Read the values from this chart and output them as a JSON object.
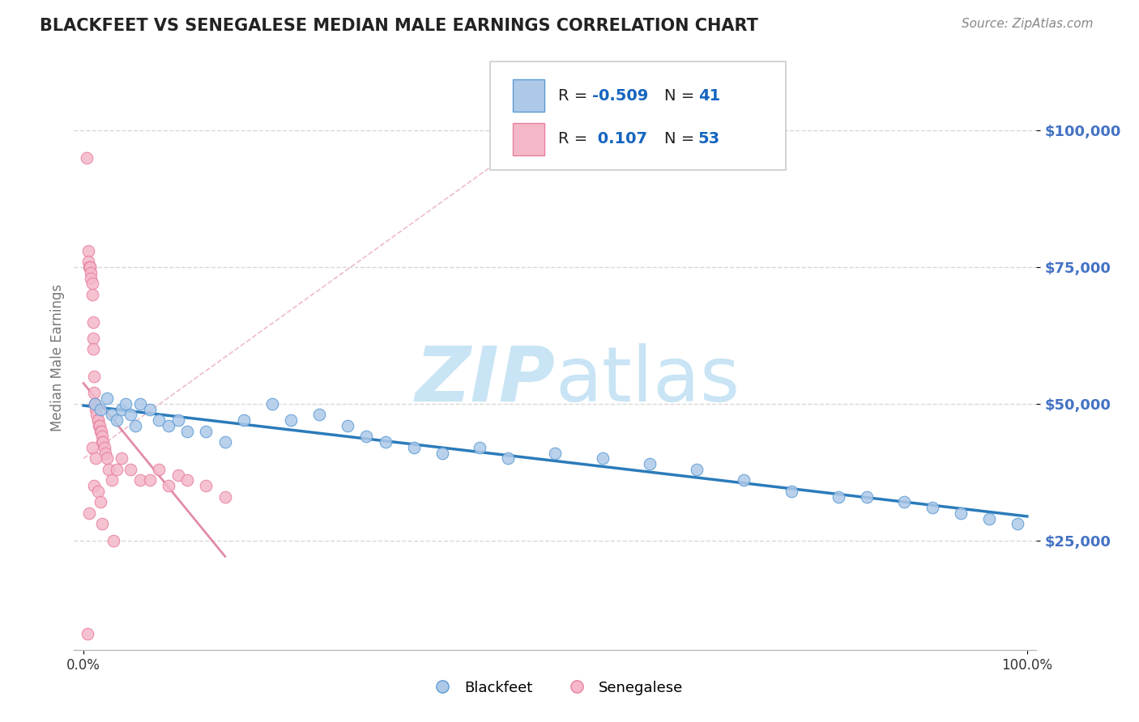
{
  "title": "BLACKFEET VS SENEGALESE MEDIAN MALE EARNINGS CORRELATION CHART",
  "source": "Source: ZipAtlas.com",
  "ylabel": "Median Male Earnings",
  "ytick_labels": [
    "$25,000",
    "$50,000",
    "$75,000",
    "$100,000"
  ],
  "ytick_values": [
    25000,
    50000,
    75000,
    100000
  ],
  "xtick_labels": [
    "0.0%",
    "100.0%"
  ],
  "xtick_values": [
    0,
    100
  ],
  "legend_R1": "-0.509",
  "legend_N1": "41",
  "legend_R2": "0.107",
  "legend_N2": "53",
  "color_blue_fill": "#aec9e8",
  "color_blue_edge": "#5b9bd5",
  "color_blue_line": "#2b7bba",
  "color_pink_fill": "#f4b8c8",
  "color_pink_edge": "#e87fa0",
  "color_pink_line": "#d04070",
  "color_title": "#222222",
  "color_source": "#888888",
  "color_ylabel": "#777777",
  "color_ytick": "#4472c4",
  "watermark_color": "#c8e4f5",
  "background_color": "#ffffff",
  "grid_color": "#d8d8d8",
  "blackfeet_x": [
    1.2,
    1.8,
    2.5,
    3.0,
    3.5,
    4.0,
    4.5,
    5.0,
    5.5,
    6.0,
    7.0,
    8.0,
    9.0,
    10.0,
    11.0,
    13.0,
    15.0,
    17.0,
    20.0,
    22.0,
    25.0,
    28.0,
    30.0,
    32.0,
    35.0,
    38.0,
    42.0,
    45.0,
    50.0,
    55.0,
    60.0,
    65.0,
    70.0,
    75.0,
    80.0,
    83.0,
    87.0,
    90.0,
    93.0,
    96.0,
    99.0
  ],
  "blackfeet_y": [
    50000,
    49000,
    51000,
    48000,
    47000,
    49000,
    50000,
    48000,
    46000,
    50000,
    49000,
    47000,
    46000,
    47000,
    45000,
    45000,
    43000,
    47000,
    50000,
    47000,
    48000,
    46000,
    44000,
    43000,
    42000,
    41000,
    42000,
    40000,
    41000,
    40000,
    39000,
    38000,
    36000,
    34000,
    33000,
    33000,
    32000,
    31000,
    30000,
    29000,
    28000
  ],
  "senegalese_x": [
    0.3,
    0.5,
    0.5,
    0.6,
    0.7,
    0.7,
    0.8,
    0.8,
    0.9,
    0.9,
    1.0,
    1.0,
    1.0,
    1.1,
    1.1,
    1.2,
    1.2,
    1.3,
    1.4,
    1.5,
    1.5,
    1.6,
    1.7,
    1.8,
    1.9,
    2.0,
    2.0,
    2.1,
    2.2,
    2.3,
    2.5,
    2.7,
    3.0,
    3.5,
    4.0,
    5.0,
    6.0,
    7.0,
    8.0,
    9.0,
    10.0,
    11.0,
    13.0,
    15.0,
    0.4,
    0.6,
    0.9,
    1.1,
    1.3,
    1.5,
    1.8,
    2.0,
    3.2
  ],
  "senegalese_y": [
    95000,
    78000,
    76000,
    75000,
    75000,
    75000,
    74000,
    73000,
    72000,
    70000,
    65000,
    62000,
    60000,
    55000,
    52000,
    50000,
    50000,
    49000,
    48000,
    47000,
    47000,
    46000,
    46000,
    45000,
    45000,
    44000,
    43000,
    43000,
    42000,
    41000,
    40000,
    38000,
    36000,
    38000,
    40000,
    38000,
    36000,
    36000,
    38000,
    35000,
    37000,
    36000,
    35000,
    33000,
    8000,
    30000,
    42000,
    35000,
    40000,
    34000,
    32000,
    28000,
    25000
  ]
}
